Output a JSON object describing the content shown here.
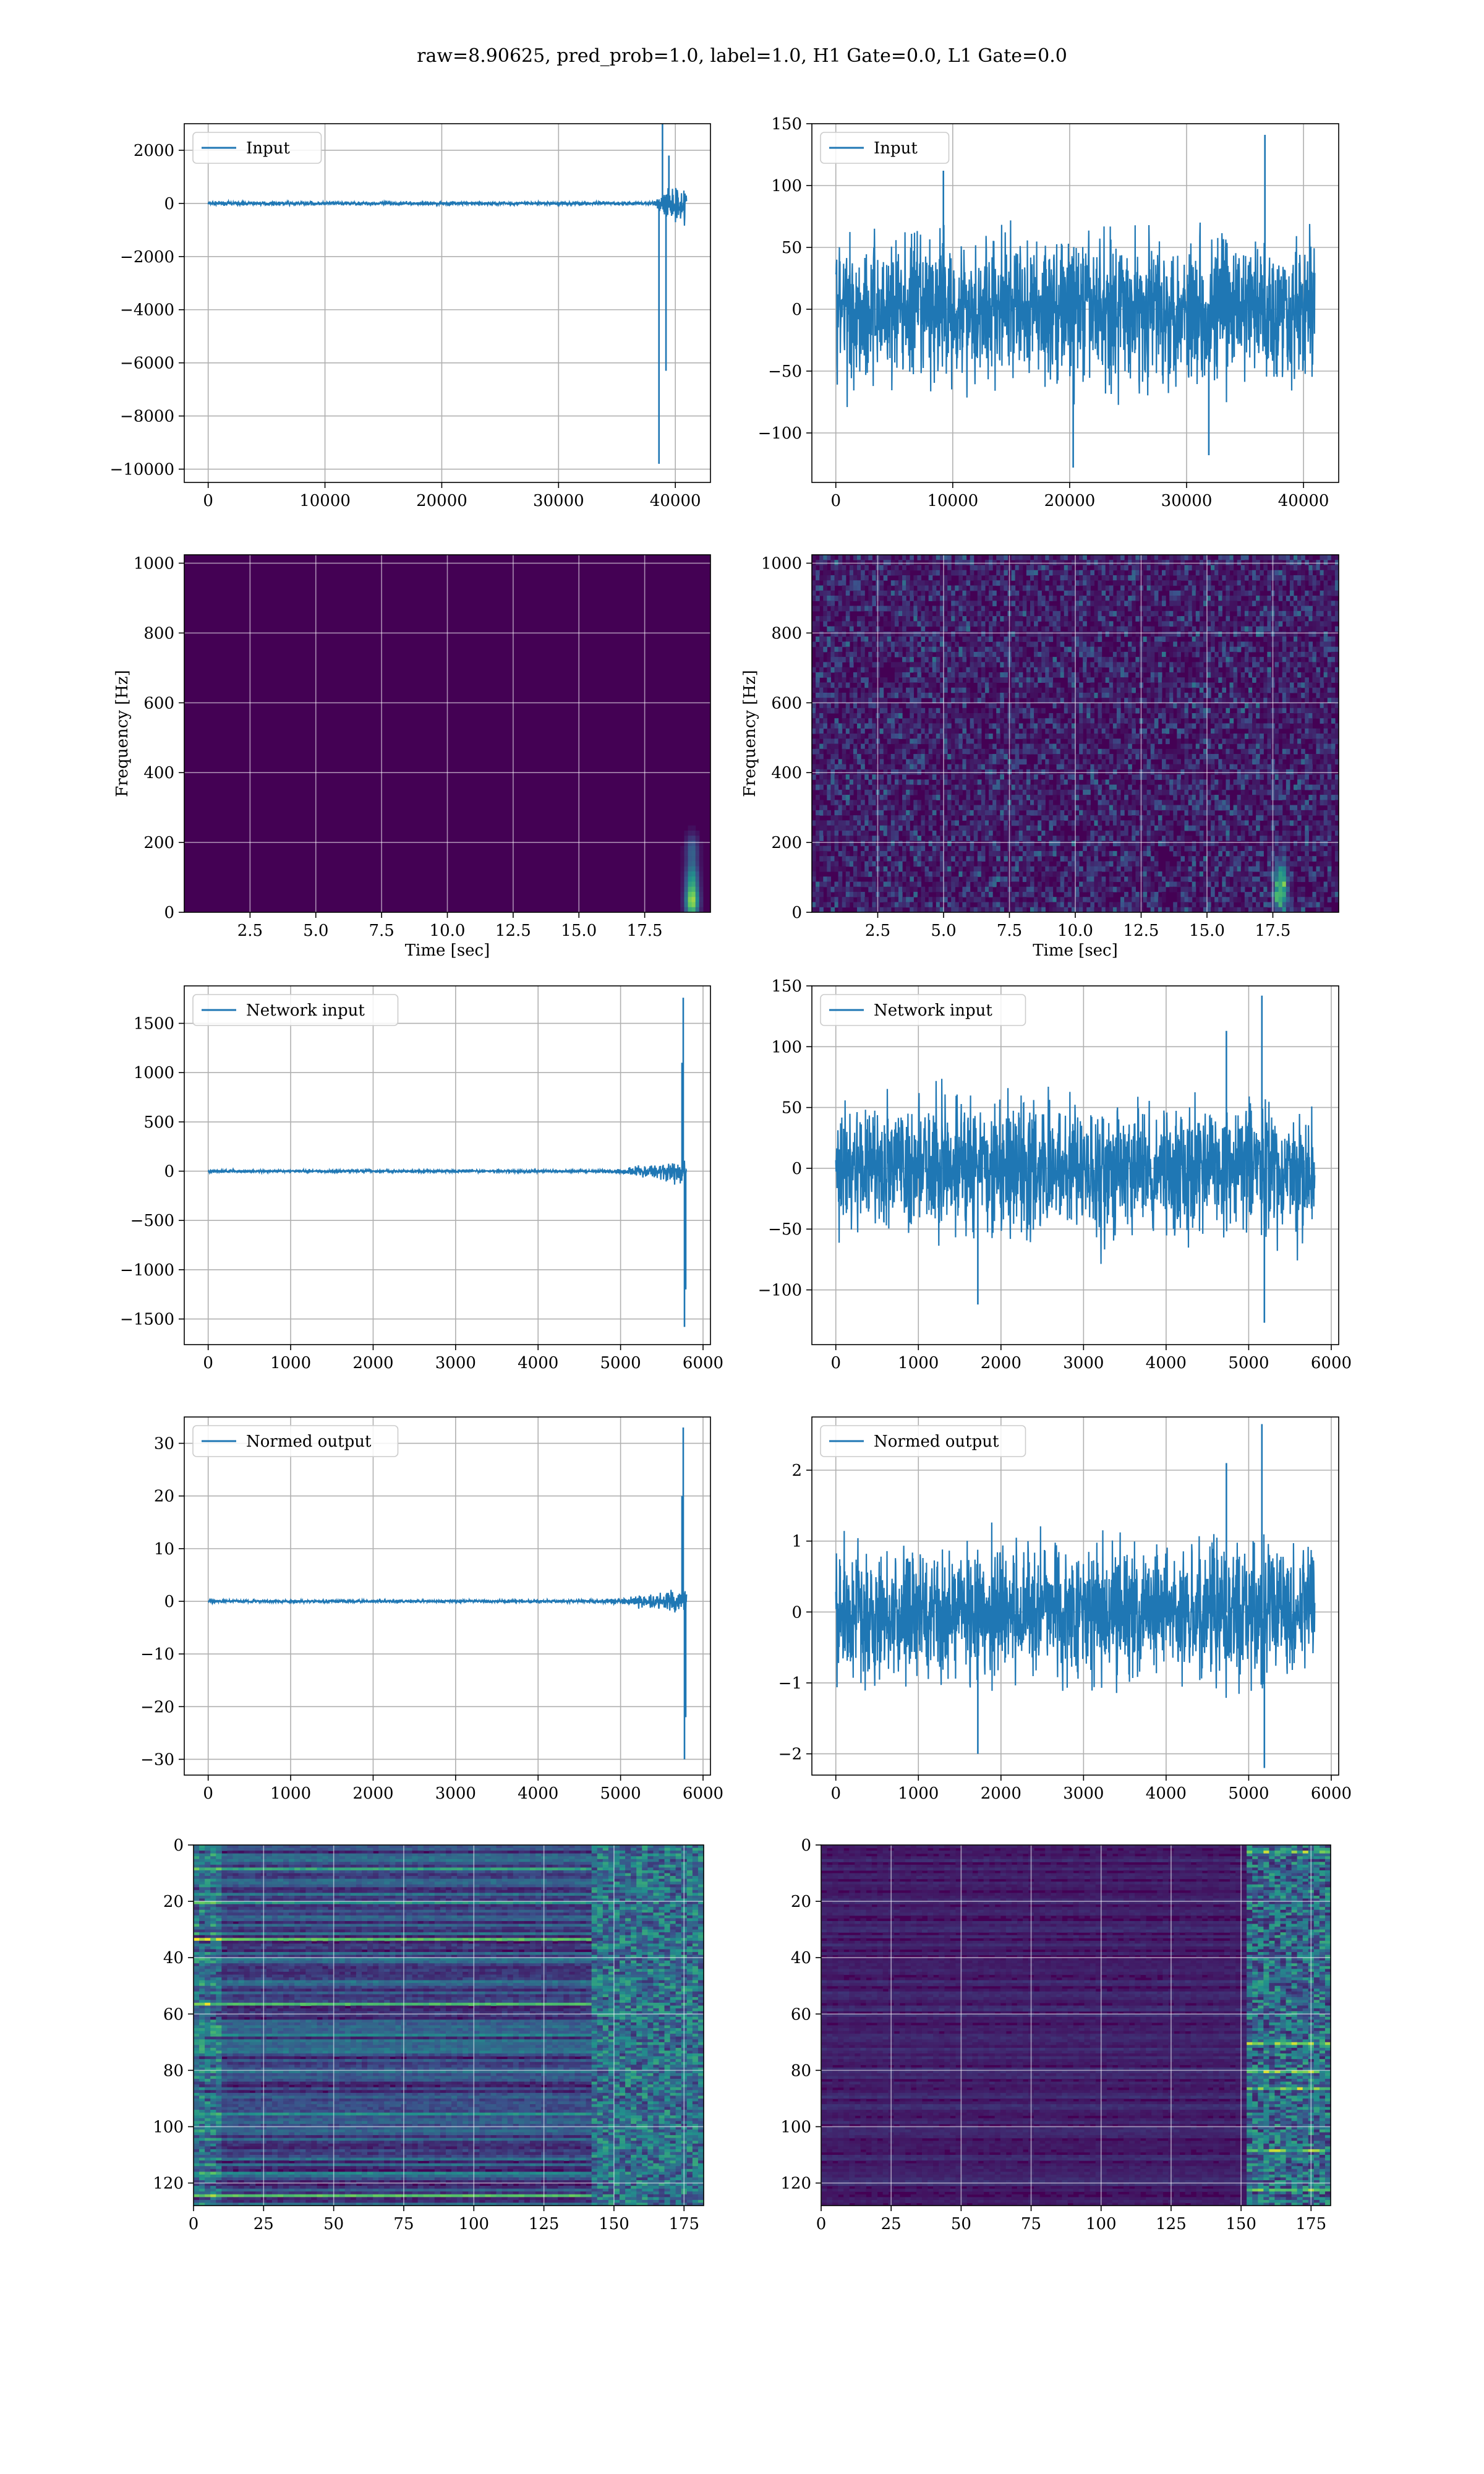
{
  "suptitle": "raw=8.90625, pred_prob=1.0, label=1.0, H1 Gate=0.0, L1 Gate=0.0",
  "colors": {
    "line": "#1f77b4",
    "grid": "#b0b0b0",
    "viridis_low": "#440154",
    "viridis_mid": "#21918c",
    "viridis_high": "#fde725"
  },
  "chart_data": [
    {
      "id": "input_h1",
      "type": "line",
      "render": "noise",
      "legend": "Input",
      "legend_placement": "upper-left",
      "grid": true,
      "x_range": [
        0,
        40960
      ],
      "xlim": [
        -2048,
        43008
      ],
      "ylim": [
        -10500,
        3000
      ],
      "xticks": [
        0,
        10000,
        20000,
        30000,
        40000
      ],
      "yticks": [
        -10000,
        -8000,
        -6000,
        -4000,
        -2000,
        0,
        2000
      ],
      "noise": {
        "base_amplitude": 60,
        "burst_start": 38000,
        "burst_center": 39000,
        "burst_end": 41000,
        "burst_amplitude": 600
      },
      "spikes": [
        [
          38600,
          -9800
        ],
        [
          38900,
          3300
        ],
        [
          39200,
          -6300
        ],
        [
          39450,
          1800
        ]
      ]
    },
    {
      "id": "input_l1",
      "type": "line",
      "render": "noise",
      "legend": "Input",
      "legend_placement": "upper-left",
      "grid": true,
      "x_range": [
        0,
        40960
      ],
      "xlim": [
        -2048,
        43008
      ],
      "ylim": [
        -140,
        150
      ],
      "xticks": [
        0,
        10000,
        20000,
        30000,
        40000
      ],
      "yticks": [
        -100,
        -50,
        0,
        50,
        100,
        150
      ],
      "noise": {
        "base_amplitude": 55,
        "burst_start": 0,
        "burst_center": 0,
        "burst_end": 0,
        "burst_amplitude": 0
      },
      "spikes": [
        [
          36700,
          141
        ],
        [
          20300,
          -128
        ],
        [
          31900,
          -118
        ],
        [
          9200,
          112
        ]
      ]
    },
    {
      "id": "spec_h1",
      "type": "heatmap",
      "render": "spectrogram",
      "xlabel": "Time [sec]",
      "ylabel": "Frequency [Hz]",
      "grid": true,
      "xlim": [
        0,
        20
      ],
      "ylim": [
        0,
        1024
      ],
      "xticks": [
        2.5,
        5.0,
        7.5,
        10.0,
        12.5,
        15.0,
        17.5
      ],
      "yticks": [
        0,
        200,
        400,
        600,
        800,
        1000
      ],
      "background_level": 0.0,
      "hotspots": [
        [
          19.3,
          30,
          0.85
        ],
        [
          19.3,
          100,
          0.45
        ],
        [
          19.3,
          180,
          0.3
        ]
      ]
    },
    {
      "id": "spec_l1",
      "type": "heatmap",
      "render": "spectrogram",
      "xlabel": "Time [sec]",
      "ylabel": "Frequency [Hz]",
      "grid": true,
      "xlim": [
        0,
        20
      ],
      "ylim": [
        0,
        1024
      ],
      "xticks": [
        2.5,
        5.0,
        7.5,
        10.0,
        12.5,
        15.0,
        17.5
      ],
      "yticks": [
        0,
        200,
        400,
        600,
        800,
        1000
      ],
      "background_level": 0.18,
      "hotspots": [
        [
          17.8,
          50,
          0.55
        ],
        [
          17.8,
          110,
          0.35
        ]
      ]
    },
    {
      "id": "net_h1",
      "type": "line",
      "render": "noise",
      "legend": "Network input",
      "legend_placement": "upper-left",
      "grid": true,
      "x_range": [
        0,
        5800
      ],
      "xlim": [
        -290,
        6090
      ],
      "ylim": [
        -1760,
        1880
      ],
      "xticks": [
        0,
        1000,
        2000,
        3000,
        4000,
        5000,
        6000
      ],
      "yticks": [
        -1500,
        -1000,
        -500,
        0,
        500,
        1000,
        1500
      ],
      "noise": {
        "base_amplitude": 12,
        "burst_start": 4500,
        "burst_center": 5800,
        "burst_end": 5800,
        "burst_amplitude": 110
      },
      "spikes": [
        [
          5760,
          1760
        ],
        [
          5775,
          -1580
        ],
        [
          5745,
          1100
        ],
        [
          5790,
          -1200
        ]
      ]
    },
    {
      "id": "net_l1",
      "type": "line",
      "render": "noise",
      "legend": "Network input",
      "legend_placement": "upper-left",
      "grid": true,
      "x_range": [
        0,
        5800
      ],
      "xlim": [
        -290,
        6090
      ],
      "ylim": [
        -145,
        150
      ],
      "xticks": [
        0,
        1000,
        2000,
        3000,
        4000,
        5000,
        6000
      ],
      "yticks": [
        -100,
        -50,
        0,
        50,
        100,
        150
      ],
      "noise": {
        "base_amplitude": 50,
        "burst_start": 0,
        "burst_center": 0,
        "burst_end": 0,
        "burst_amplitude": 0
      },
      "spikes": [
        [
          5160,
          142
        ],
        [
          5190,
          -127
        ],
        [
          1720,
          -112
        ],
        [
          4730,
          113
        ]
      ]
    },
    {
      "id": "norm_h1",
      "type": "line",
      "render": "noise",
      "legend": "Normed output",
      "legend_placement": "upper-left",
      "grid": true,
      "x_range": [
        0,
        5800
      ],
      "xlim": [
        -290,
        6090
      ],
      "ylim": [
        -33,
        35
      ],
      "xticks": [
        0,
        1000,
        2000,
        3000,
        4000,
        5000,
        6000
      ],
      "yticks": [
        -30,
        -20,
        -10,
        0,
        10,
        20,
        30
      ],
      "noise": {
        "base_amplitude": 0.25,
        "burst_start": 4500,
        "burst_center": 5800,
        "burst_end": 5800,
        "burst_amplitude": 2.2
      },
      "spikes": [
        [
          5760,
          33
        ],
        [
          5775,
          -30
        ],
        [
          5745,
          20
        ],
        [
          5790,
          -22
        ]
      ]
    },
    {
      "id": "norm_l1",
      "type": "line",
      "render": "noise",
      "legend": "Normed output",
      "legend_placement": "upper-left",
      "grid": true,
      "x_range": [
        0,
        5800
      ],
      "xlim": [
        -290,
        6090
      ],
      "ylim": [
        -2.3,
        2.75
      ],
      "xticks": [
        0,
        1000,
        2000,
        3000,
        4000,
        5000,
        6000
      ],
      "yticks": [
        -2,
        -1,
        0,
        1,
        2
      ],
      "noise": {
        "base_amplitude": 0.9,
        "burst_start": 0,
        "burst_center": 0,
        "burst_end": 0,
        "burst_amplitude": 0
      },
      "spikes": [
        [
          5160,
          2.65
        ],
        [
          5190,
          -2.2
        ],
        [
          1720,
          -2.0
        ],
        [
          4730,
          2.1
        ]
      ]
    },
    {
      "id": "feat_h1",
      "type": "heatmap",
      "render": "features",
      "grid": true,
      "xlim": [
        0,
        182
      ],
      "ylim": [
        128,
        0
      ],
      "xticks": [
        0,
        25,
        50,
        75,
        100,
        125,
        150,
        175
      ],
      "yticks": [
        0,
        20,
        40,
        60,
        80,
        100,
        120
      ],
      "style": "horizontal-bands",
      "bright_rows": [
        8,
        20,
        33,
        56,
        67,
        95,
        116,
        124
      ]
    },
    {
      "id": "feat_l1",
      "type": "heatmap",
      "render": "features",
      "grid": true,
      "xlim": [
        0,
        182
      ],
      "ylim": [
        128,
        0
      ],
      "xticks": [
        0,
        25,
        50,
        75,
        100,
        125,
        150,
        175
      ],
      "yticks": [
        0,
        20,
        40,
        60,
        80,
        100,
        120
      ],
      "style": "late-onset",
      "bright_rows": [
        2,
        70,
        80,
        86,
        108,
        122
      ]
    }
  ]
}
